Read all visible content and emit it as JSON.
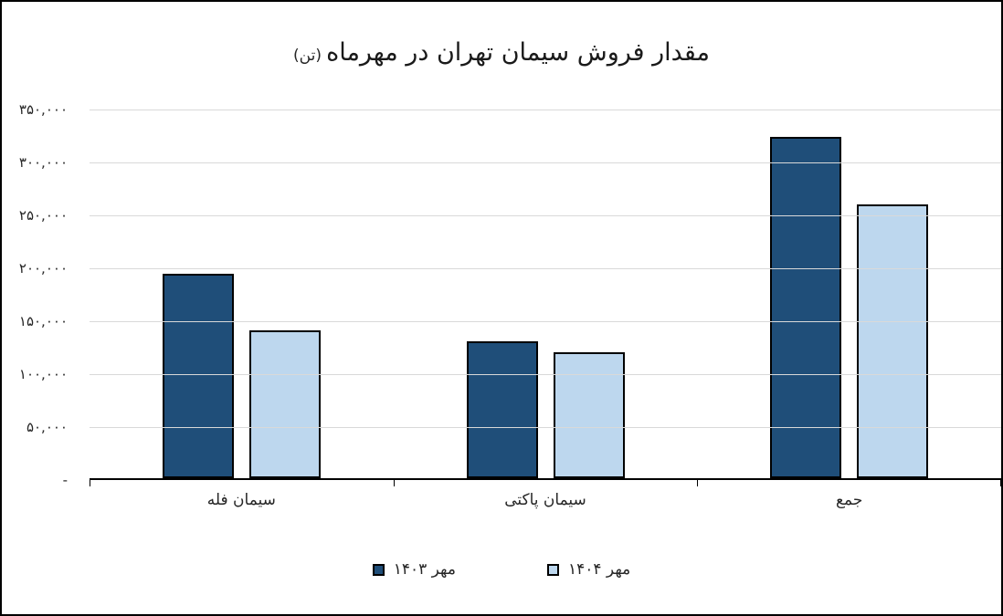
{
  "title": {
    "main": "مقدار فروش سیمان تهران در مهرماه",
    "unit": "(تن)"
  },
  "chart_data": {
    "type": "bar",
    "title": "مقدار فروش سیمان تهران در مهرماه (تن)",
    "categories": [
      "سیمان فله",
      "سیمان پاکتی",
      "جمع"
    ],
    "series": [
      {
        "name": "مهر ۱۴۰۳",
        "color": "#1F4E79",
        "values": [
          194000,
          130000,
          324000
        ]
      },
      {
        "name": "مهر ۱۴۰۴",
        "color": "#BDD7EE",
        "values": [
          140000,
          120000,
          260000
        ]
      }
    ],
    "xlabel": "",
    "ylabel": "",
    "ylim": [
      0,
      350000
    ],
    "ytick_interval": 50000,
    "yticks": [
      {
        "value": 0,
        "label": "-"
      },
      {
        "value": 50000,
        "label": "۵۰,۰۰۰"
      },
      {
        "value": 100000,
        "label": "۱۰۰,۰۰۰"
      },
      {
        "value": 150000,
        "label": "۱۵۰,۰۰۰"
      },
      {
        "value": 200000,
        "label": "۲۰۰,۰۰۰"
      },
      {
        "value": 250000,
        "label": "۲۵۰,۰۰۰"
      },
      {
        "value": 300000,
        "label": "۳۰۰,۰۰۰"
      },
      {
        "value": 350000,
        "label": "۳۵۰,۰۰۰"
      }
    ],
    "grid": true,
    "legend_position": "bottom",
    "colors": {
      "grid": "#D9D9D9",
      "axis": "#000000",
      "bar_border": "#000000",
      "text": "#262626"
    }
  }
}
